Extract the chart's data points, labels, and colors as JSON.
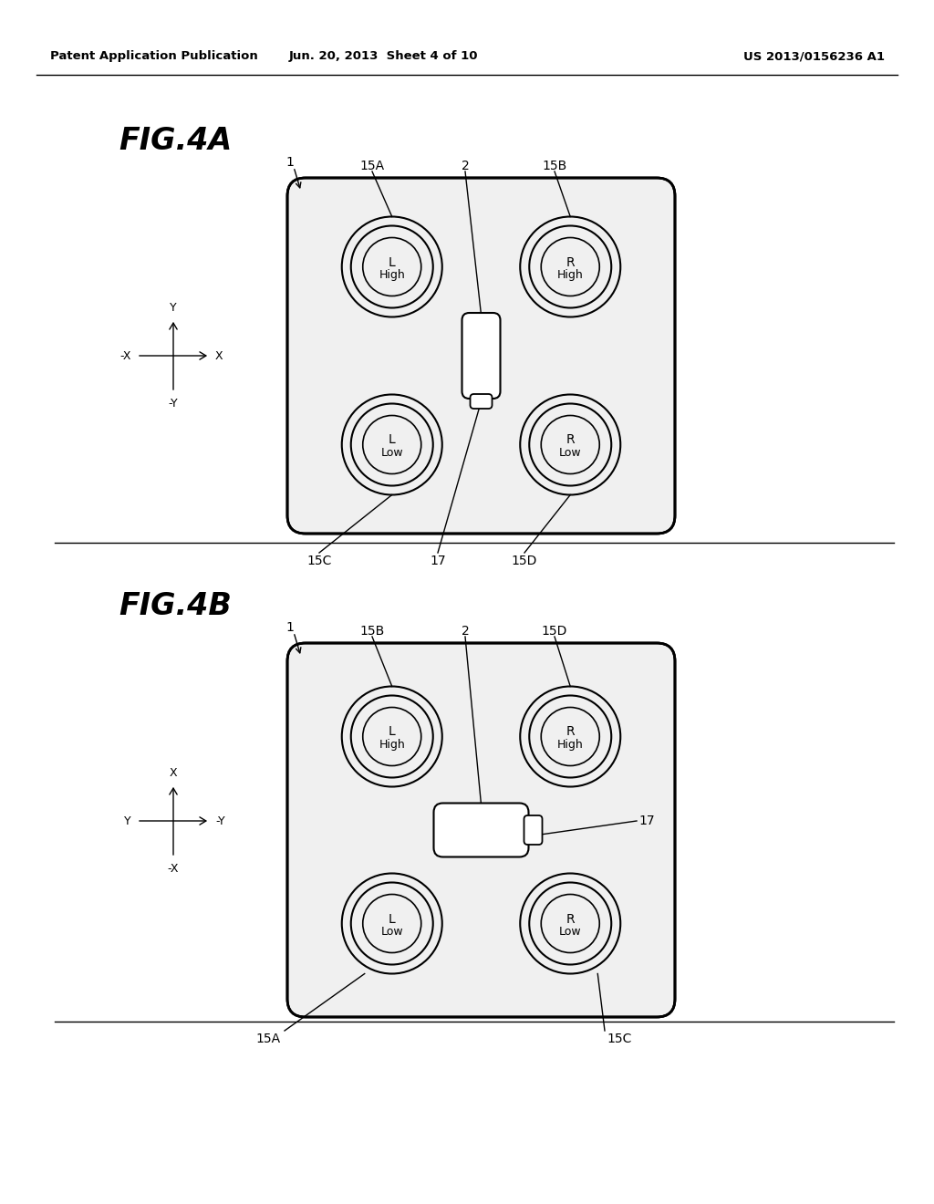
{
  "bg_color": "#ffffff",
  "header_left": "Patent Application Publication",
  "header_mid": "Jun. 20, 2013  Sheet 4 of 10",
  "header_right": "US 2013/0156236 A1",
  "fig4a_label": "FIG.4A",
  "fig4b_label": "FIG.4B"
}
